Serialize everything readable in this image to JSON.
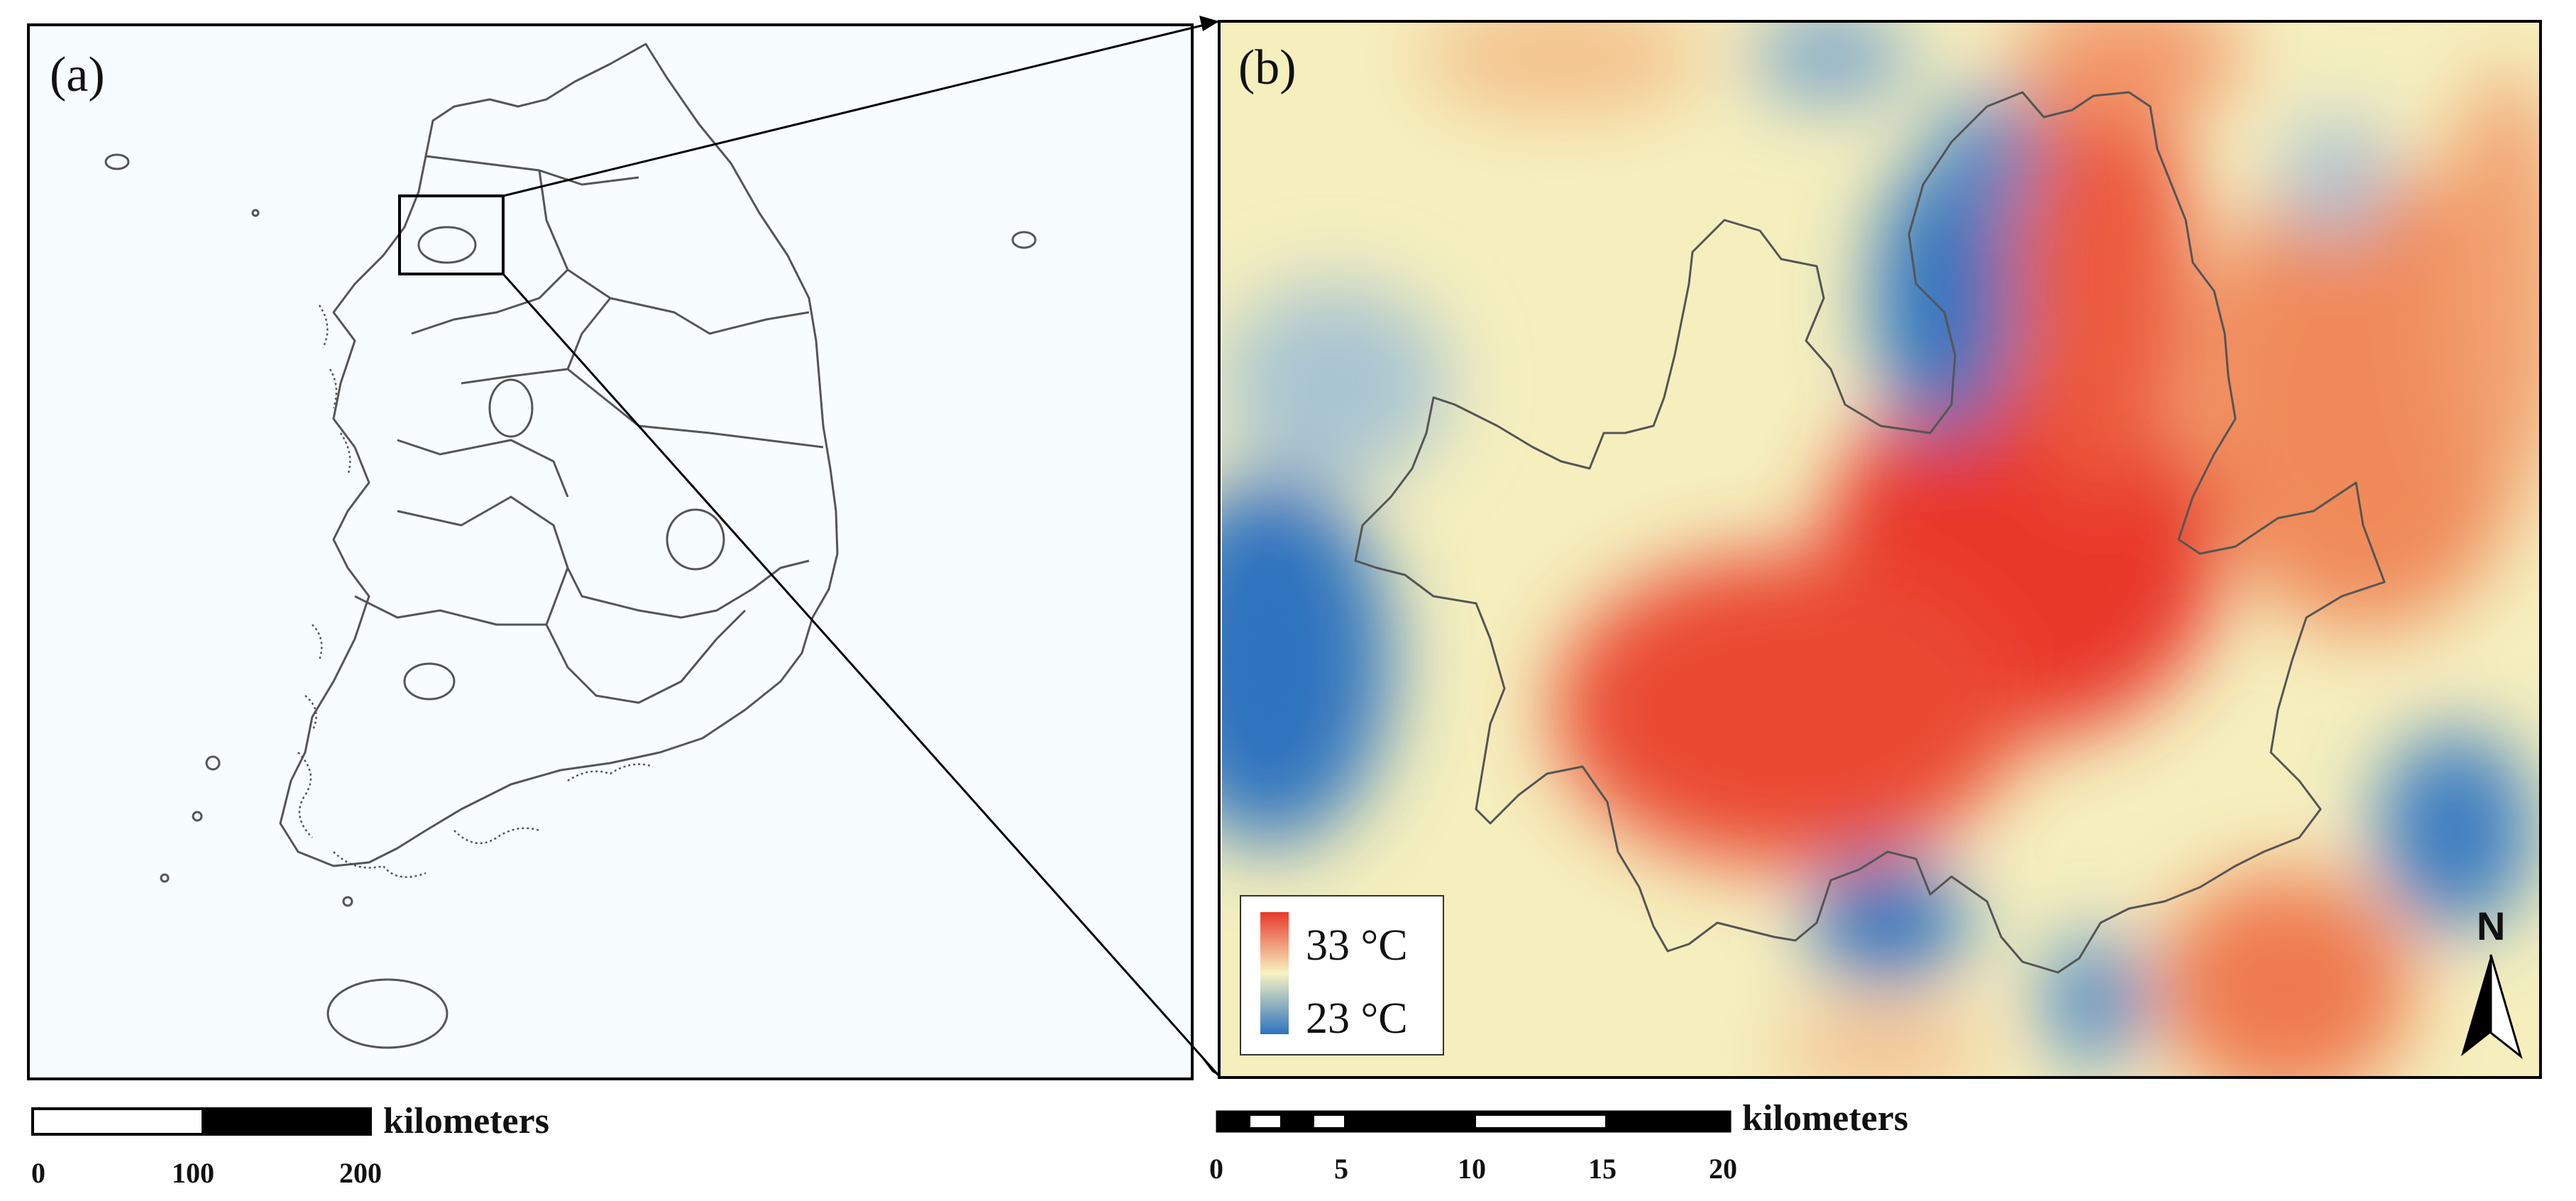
{
  "panel_a": {
    "label": "(a)",
    "scale_bar": {
      "unit": "kilometers",
      "ticks": [
        "0",
        "100",
        "200"
      ]
    }
  },
  "panel_b": {
    "label": "(b)",
    "legend": {
      "high": "33 °C",
      "low": "23 °C",
      "high_color": "#e8392a",
      "mid_color": "#f7f3c2",
      "low_color": "#2d73bf"
    },
    "north_arrow": "N",
    "scale_bar": {
      "unit": "kilometers",
      "ticks": [
        "0",
        "5",
        "10",
        "15",
        "20"
      ]
    }
  },
  "colors": {
    "background_a": "#f7fdff",
    "frame": "#000000",
    "boundary": "#555555"
  }
}
